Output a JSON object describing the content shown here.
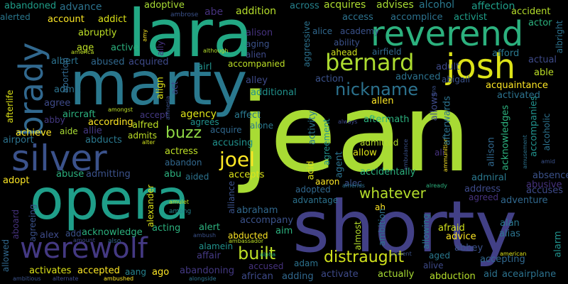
{
  "words": [
    {
      "text": "jean",
      "color": "#a8db34"
    },
    {
      "text": "shorty",
      "color": "#424086"
    },
    {
      "text": "lara",
      "color": "#22a884"
    },
    {
      "text": "marty",
      "color": "#2a788e"
    },
    {
      "text": "opera",
      "color": "#1f9e89"
    },
    {
      "text": "reverend",
      "color": "#2cb17e"
    },
    {
      "text": "josh",
      "color": "#dde318"
    },
    {
      "text": "werewolf",
      "color": "#443983"
    },
    {
      "text": "silver",
      "color": "#3b528b"
    },
    {
      "text": "brady",
      "color": "#31688e"
    },
    {
      "text": "bernard",
      "color": "#addc30"
    },
    {
      "text": "nickname",
      "color": "#2c728e"
    },
    {
      "text": "distraught",
      "color": "#d0e11c"
    },
    {
      "text": "whatever",
      "color": "#b5de2b"
    },
    {
      "text": "joel",
      "color": "#fde725"
    },
    {
      "text": "built",
      "color": "#bddf26"
    },
    {
      "text": "buzz",
      "color": "#8fd744"
    },
    {
      "text": "abandoned",
      "color": "#1f9e89"
    },
    {
      "text": "advance",
      "color": "#2c728e"
    },
    {
      "text": "abe",
      "color": "#46327e"
    },
    {
      "text": "addition",
      "color": "#b5de2b"
    },
    {
      "text": "across",
      "color": "#26828e"
    },
    {
      "text": "acquires",
      "color": "#addc30"
    },
    {
      "text": "advises",
      "color": "#a8db34"
    },
    {
      "text": "alcohol",
      "color": "#2a788e"
    },
    {
      "text": "affection",
      "color": "#1f9e89"
    },
    {
      "text": "alerted",
      "color": "#2a788e"
    },
    {
      "text": "account",
      "color": "#fde725"
    },
    {
      "text": "addict",
      "color": "#dde318"
    },
    {
      "text": "adoptive",
      "color": "#a8db34"
    },
    {
      "text": "ambrose",
      "color": "#3b528b"
    },
    {
      "text": "access",
      "color": "#2c728e"
    },
    {
      "text": "accomplice",
      "color": "#2c728e"
    },
    {
      "text": "activist",
      "color": "#1f9e89"
    },
    {
      "text": "accident",
      "color": "#b5de2b"
    },
    {
      "text": "actor",
      "color": "#2cb17e"
    },
    {
      "text": "alien",
      "color": "#3e4a89"
    },
    {
      "text": "alice",
      "color": "#31688e"
    },
    {
      "text": "academy",
      "color": "#3b528b"
    },
    {
      "text": "abruptly",
      "color": "#bddf26"
    },
    {
      "text": "age",
      "color": "#bddf26"
    },
    {
      "text": "active",
      "color": "#2cb17e"
    },
    {
      "text": "alison",
      "color": "#46327e"
    },
    {
      "text": "aging",
      "color": "#3b528b"
    },
    {
      "text": "ability",
      "color": "#3b528b"
    },
    {
      "text": "airfield",
      "color": "#31688e"
    },
    {
      "text": "afford",
      "color": "#2a788e"
    },
    {
      "text": "actual",
      "color": "#3e4a89"
    },
    {
      "text": "able",
      "color": "#bddf26"
    },
    {
      "text": "ahead",
      "color": "#d0e11c"
    },
    {
      "text": "albert",
      "color": "#2c728e"
    },
    {
      "text": "abused",
      "color": "#31688e"
    },
    {
      "text": "acquired",
      "color": "#3e4a89"
    },
    {
      "text": "airl",
      "color": "#21918c"
    },
    {
      "text": "accompanied",
      "color": "#bddf26"
    },
    {
      "text": "adult",
      "color": "#3e4a89"
    },
    {
      "text": "advanced",
      "color": "#2c728e"
    },
    {
      "text": "abigail",
      "color": "#3b528b"
    },
    {
      "text": "acquaintance",
      "color": "#fde725"
    },
    {
      "text": "admit",
      "color": "#2c728e"
    },
    {
      "text": "additional",
      "color": "#21918c"
    },
    {
      "text": "action",
      "color": "#3b528b"
    },
    {
      "text": "activated",
      "color": "#2c728e"
    },
    {
      "text": "agree",
      "color": "#3e4a89"
    },
    {
      "text": "alley",
      "color": "#3e4a89"
    },
    {
      "text": "allen",
      "color": "#fde725"
    },
    {
      "text": "aircraft",
      "color": "#2cb17e"
    },
    {
      "text": "abby",
      "color": "#443983"
    },
    {
      "text": "accept",
      "color": "#443983"
    },
    {
      "text": "agency",
      "color": "#dde318"
    },
    {
      "text": "affect",
      "color": "#2a788e"
    },
    {
      "text": "according",
      "color": "#fde725"
    },
    {
      "text": "agrees",
      "color": "#21918c"
    },
    {
      "text": "alfred",
      "color": "#bddf26"
    },
    {
      "text": "alone",
      "color": "#2a788e"
    },
    {
      "text": "achieve",
      "color": "#fde725"
    },
    {
      "text": "aide",
      "color": "#a8db34"
    },
    {
      "text": "allie",
      "color": "#443983"
    },
    {
      "text": "acquire",
      "color": "#31688e"
    },
    {
      "text": "aftermath",
      "color": "#2cb17e"
    },
    {
      "text": "airport",
      "color": "#2c728e"
    },
    {
      "text": "abducts",
      "color": "#2a788e"
    },
    {
      "text": "admits",
      "color": "#bddf26"
    },
    {
      "text": "accusing",
      "color": "#21918c"
    },
    {
      "text": "admitted",
      "color": "#b5de2b"
    },
    {
      "text": "actress",
      "color": "#bddf26"
    },
    {
      "text": "abandon",
      "color": "#31688e"
    },
    {
      "text": "allow",
      "color": "#dde318"
    },
    {
      "text": "ali",
      "color": "#46327e"
    },
    {
      "text": "abuse",
      "color": "#2cb17e"
    },
    {
      "text": "admitting",
      "color": "#3b528b"
    },
    {
      "text": "abu",
      "color": "#2cb17e"
    },
    {
      "text": "accepts",
      "color": "#dde318"
    },
    {
      "text": "accidentally",
      "color": "#2cb17e"
    },
    {
      "text": "admiral",
      "color": "#2a788e"
    },
    {
      "text": "absence",
      "color": "#3b528b"
    },
    {
      "text": "adopt",
      "color": "#fde725"
    },
    {
      "text": "aided",
      "color": "#2c728e"
    },
    {
      "text": "aaron",
      "color": "#fde725"
    },
    {
      "text": "alec",
      "color": "#3b528b"
    },
    {
      "text": "address",
      "color": "#3e4a89"
    },
    {
      "text": "abusive",
      "color": "#46327e"
    },
    {
      "text": "adopted",
      "color": "#31688e"
    },
    {
      "text": "accuses",
      "color": "#3e4a89"
    },
    {
      "text": "advantage",
      "color": "#2c728e"
    },
    {
      "text": "agreed",
      "color": "#46327e"
    },
    {
      "text": "adventure",
      "color": "#31688e"
    },
    {
      "text": "acting",
      "color": "#2cb17e"
    },
    {
      "text": "alert",
      "color": "#2cb17e"
    },
    {
      "text": "abraham",
      "color": "#31688e"
    },
    {
      "text": "ah",
      "color": "#fde725"
    },
    {
      "text": "alex",
      "color": "#3e4a89"
    },
    {
      "text": "add",
      "color": "#3b528b"
    },
    {
      "text": "acknowledge",
      "color": "#2cb17e"
    },
    {
      "text": "accompany",
      "color": "#3b528b"
    },
    {
      "text": "aim",
      "color": "#2cb17e"
    },
    {
      "text": "afraid",
      "color": "#d0e11c"
    },
    {
      "text": "alan",
      "color": "#2a788e"
    },
    {
      "text": "alias",
      "color": "#2c728e"
    },
    {
      "text": "alamein",
      "color": "#21918c"
    },
    {
      "text": "abducted",
      "color": "#fde725"
    },
    {
      "text": "advice",
      "color": "#fde725"
    },
    {
      "text": "affair",
      "color": "#443983"
    },
    {
      "text": "abbey",
      "color": "#3b528b"
    },
    {
      "text": "accused",
      "color": "#46327e"
    },
    {
      "text": "adam",
      "color": "#2c728e"
    },
    {
      "text": "accepting",
      "color": "#31688e"
    },
    {
      "text": "aged",
      "color": "#2a788e"
    },
    {
      "text": "activates",
      "color": "#dde318"
    },
    {
      "text": "accepted",
      "color": "#fde725"
    },
    {
      "text": "aang",
      "color": "#26828e"
    },
    {
      "text": "ago",
      "color": "#fde725"
    },
    {
      "text": "abandoning",
      "color": "#443983"
    },
    {
      "text": "african",
      "color": "#3e4a89"
    },
    {
      "text": "adding",
      "color": "#31688e"
    },
    {
      "text": "activate",
      "color": "#3e4a89"
    },
    {
      "text": "actually",
      "color": "#a8db34"
    },
    {
      "text": "abduction",
      "color": "#b5de2b"
    },
    {
      "text": "aid",
      "color": "#2c728e"
    },
    {
      "text": "aceairplane",
      "color": "#2c728e"
    },
    {
      "text": "alive",
      "color": "#3e4a89"
    },
    {
      "text": "amy",
      "color": "#fde725"
    },
    {
      "text": "america",
      "color": "#bddf26"
    },
    {
      "text": "although",
      "color": "#b5de2b"
    },
    {
      "text": "amnesia",
      "color": "#3b528b"
    },
    {
      "text": "amongst",
      "color": "#bddf26"
    },
    {
      "text": "alter",
      "color": "#d0e11c"
    },
    {
      "text": "amulet",
      "color": "#bddf26"
    },
    {
      "text": "among",
      "color": "#26828e"
    },
    {
      "text": "ambush",
      "color": "#3b528b"
    },
    {
      "text": "ambassador",
      "color": "#bddf26"
    },
    {
      "text": "amount",
      "color": "#3e4a89"
    },
    {
      "text": "also",
      "color": "#31688e"
    },
    {
      "text": "alpha",
      "color": "#2cb17e"
    },
    {
      "text": "ambitious",
      "color": "#3b528b"
    },
    {
      "text": "alternate",
      "color": "#3e4a89"
    },
    {
      "text": "ambushed",
      "color": "#fde725"
    },
    {
      "text": "alongside",
      "color": "#2c728e"
    },
    {
      "text": "always",
      "color": "#3e4a89"
    },
    {
      "text": "already",
      "color": "#2cb17e"
    },
    {
      "text": "amends",
      "color": "#2c728e"
    },
    {
      "text": "ambulance",
      "color": "#3b528b"
    },
    {
      "text": "ammunition",
      "color": "#fde725"
    },
    {
      "text": "amusement",
      "color": "#2c728e"
    },
    {
      "text": "amid",
      "color": "#3b528b"
    },
    {
      "text": "ancient",
      "color": "#3b528b"
    },
    {
      "text": "american",
      "color": "#dde318"
    },
    {
      "text": "ana",
      "color": "#3b528b"
    },
    {
      "text": "albright",
      "color": "#2c728e"
    },
    {
      "text": "abortion",
      "color": "#31688e"
    },
    {
      "text": "afterlife",
      "color": "#dde318"
    },
    {
      "text": "ally",
      "color": "#46327e"
    },
    {
      "text": "act",
      "color": "#3e4a89"
    },
    {
      "text": "align",
      "color": "#dde318"
    },
    {
      "text": "aggressive",
      "color": "#2c728e"
    },
    {
      "text": "acid",
      "color": "#dde318"
    },
    {
      "text": "activity",
      "color": "#2a788e"
    },
    {
      "text": "agent",
      "color": "#2c728e"
    },
    {
      "text": "agreement",
      "color": "#21918c"
    },
    {
      "text": "afterwards",
      "color": "#2c728e"
    },
    {
      "text": "allows",
      "color": "#3e4a89"
    },
    {
      "text": "acknowledges",
      "color": "#2cb17e"
    },
    {
      "text": "allison",
      "color": "#31688e"
    },
    {
      "text": "accompanies",
      "color": "#21918c"
    },
    {
      "text": "alcoholic",
      "color": "#2c728e"
    },
    {
      "text": "alexander",
      "color": "#dde318"
    },
    {
      "text": "aboard",
      "color": "#46327e"
    },
    {
      "text": "agreeing",
      "color": "#3b528b"
    },
    {
      "text": "allowed",
      "color": "#31688e"
    },
    {
      "text": "alliance",
      "color": "#3b528b"
    },
    {
      "text": "almost",
      "color": "#b5de2b"
    },
    {
      "text": "ambition",
      "color": "#2c728e"
    },
    {
      "text": "allowing",
      "color": "#2a788e"
    },
    {
      "text": "alarm",
      "color": "#21918c"
    }
  ]
}
